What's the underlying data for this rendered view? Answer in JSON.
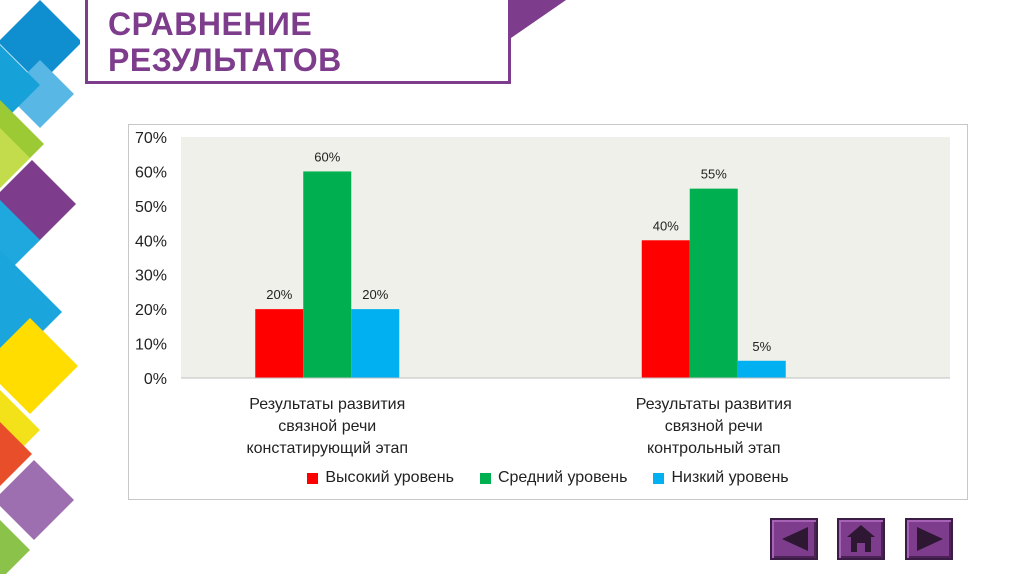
{
  "title": "СРАВНЕНИЕ\nРЕЗУЛЬТАТОВ",
  "chart_data": {
    "type": "bar",
    "categories": [
      [
        "Результаты развития",
        "связной речи",
        "констатирующий этап"
      ],
      [
        "Результаты развития",
        "связной речи",
        "контрольный этап"
      ]
    ],
    "series": [
      {
        "name": "Высокий уровень",
        "color": "#ff0000",
        "values": [
          20,
          40
        ],
        "labels": [
          "20%",
          "40%"
        ]
      },
      {
        "name": "Средний уровень",
        "color": "#00b050",
        "values": [
          60,
          55
        ],
        "labels": [
          "60%",
          "55%"
        ]
      },
      {
        "name": "Низкий уровень",
        "color": "#00b0f0",
        "values": [
          20,
          5
        ],
        "labels": [
          "20%",
          "5%"
        ]
      }
    ],
    "ylim": [
      0,
      70
    ],
    "yticks": [
      "0%",
      "10%",
      "20%",
      "30%",
      "40%",
      "50%",
      "60%",
      "70%"
    ],
    "plot_background": "#eef0e9",
    "grid": false,
    "legend_position": "bottom"
  },
  "nav": {
    "back": "arrow-left-icon",
    "home": "home-icon",
    "forward": "arrow-right-icon"
  },
  "colors": {
    "accent": "#7d3c8c"
  }
}
